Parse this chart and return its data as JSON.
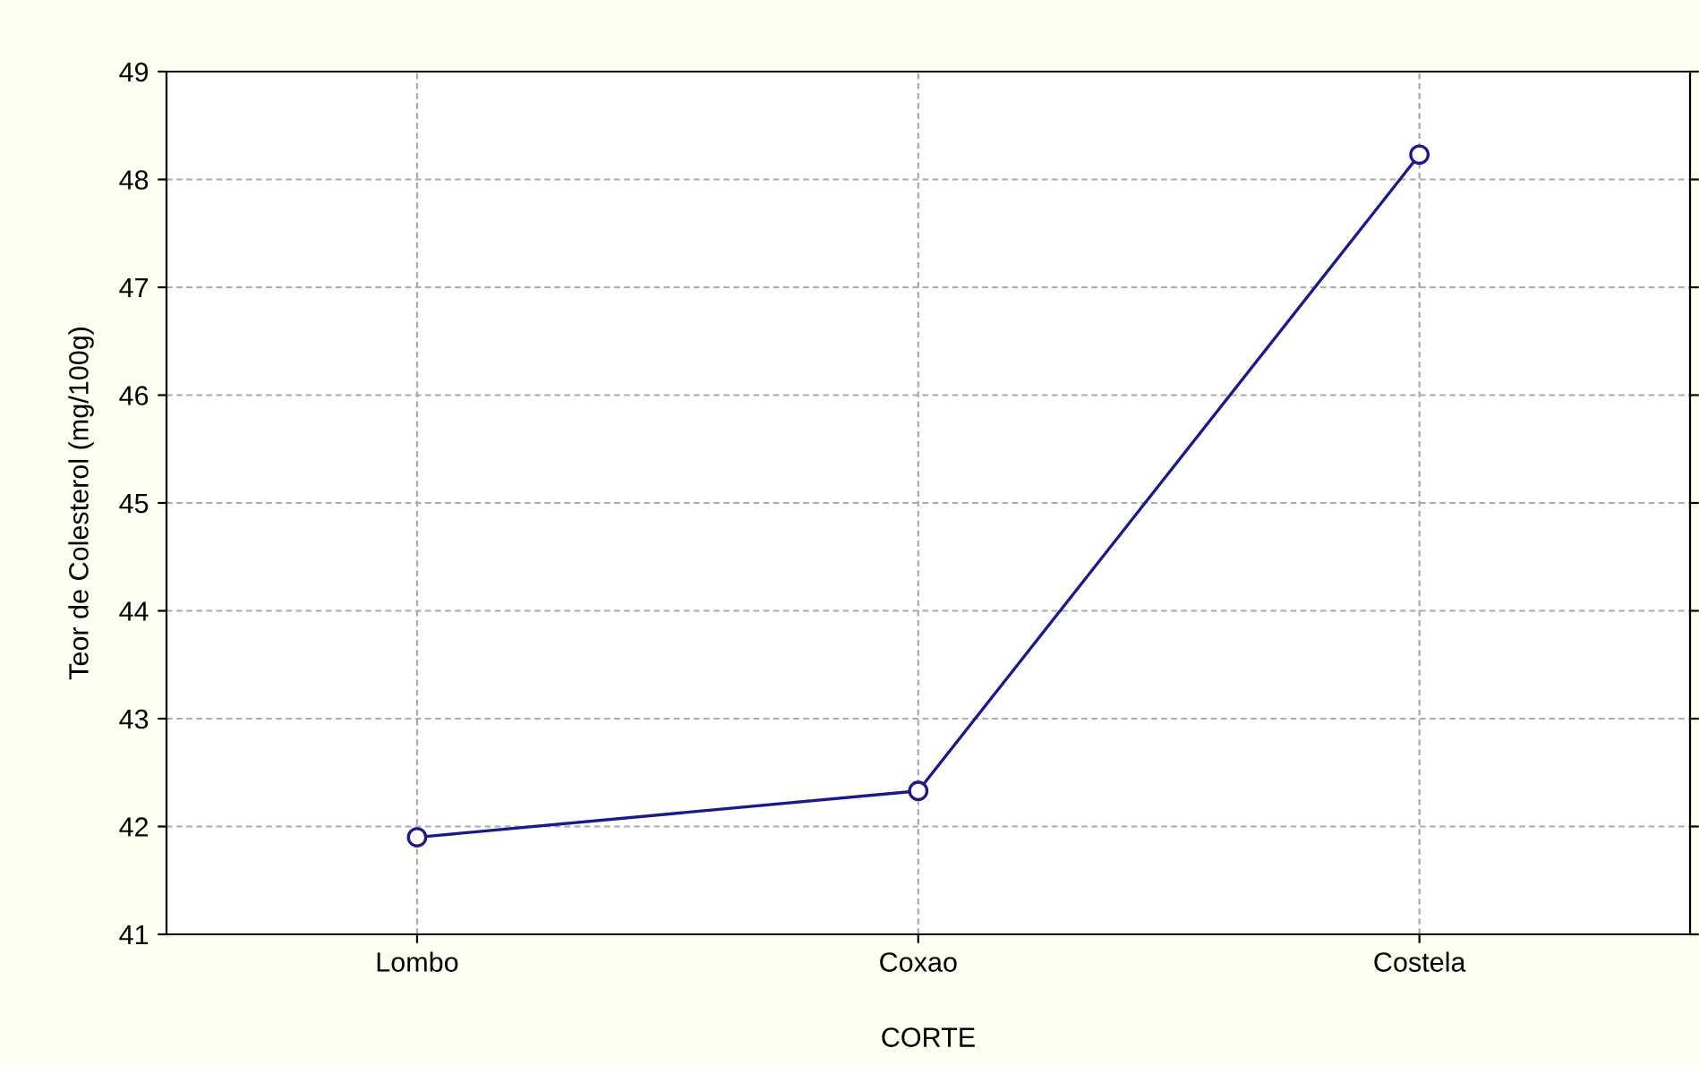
{
  "chart_data": {
    "type": "line",
    "xlabel": "CORTE",
    "ylabel": "Teor de Colesterol (mg/100g)",
    "categories": [
      "Lombo",
      "Coxao",
      "Costela"
    ],
    "series": [
      {
        "color": "#1a1a8c",
        "values": [
          41.9,
          42.33,
          48.23
        ]
      }
    ],
    "ylim": [
      41,
      49
    ],
    "yticks": [
      41,
      42,
      43,
      44,
      45,
      46,
      47,
      48,
      49
    ],
    "grid": true,
    "marker": "circle",
    "line_style": "solid"
  }
}
